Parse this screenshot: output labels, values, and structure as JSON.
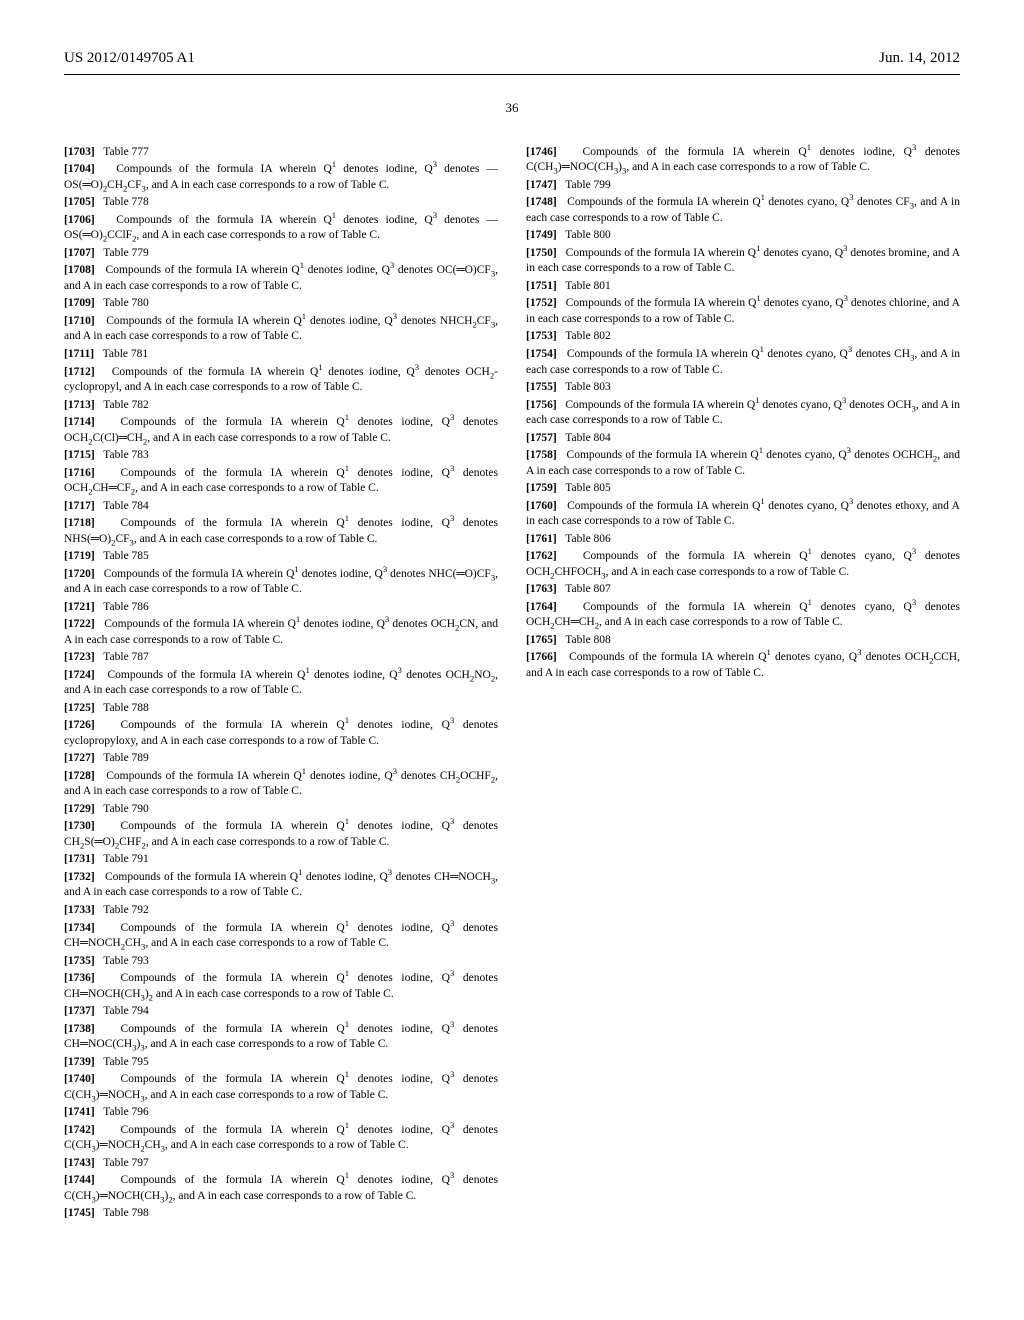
{
  "header": {
    "pub_number": "US 2012/0149705 A1",
    "pub_date": "Jun. 14, 2012",
    "page_number": "36"
  },
  "entries": [
    {
      "num": "[1703]",
      "title": "Table 777"
    },
    {
      "num": "[1704]",
      "text": "Compounds of the formula IA wherein Q¹ denotes iodine, Q³ denotes —OS(═O)₂CH₂CF₃, and A in each case corresponds to a row of Table C."
    },
    {
      "num": "[1705]",
      "title": "Table 778"
    },
    {
      "num": "[1706]",
      "text": "Compounds of the formula IA wherein Q¹ denotes iodine, Q³ denotes —OS(═O)₂CClF₂, and A in each case corresponds to a row of Table C."
    },
    {
      "num": "[1707]",
      "title": "Table 779"
    },
    {
      "num": "[1708]",
      "text": "Compounds of the formula IA wherein Q¹ denotes iodine, Q³ denotes OC(═O)CF₃, and A in each case corresponds to a row of Table C."
    },
    {
      "num": "[1709]",
      "title": "Table 780"
    },
    {
      "num": "[1710]",
      "text": "Compounds of the formula IA wherein Q¹ denotes iodine, Q³ denotes NHCH₂CF₃, and A in each case corresponds to a row of Table C."
    },
    {
      "num": "[1711]",
      "title": "Table 781"
    },
    {
      "num": "[1712]",
      "text": "Compounds of the formula IA wherein Q¹ denotes iodine, Q³ denotes OCH₂-cyclopropyl, and A in each case corresponds to a row of Table C."
    },
    {
      "num": "[1713]",
      "title": "Table 782"
    },
    {
      "num": "[1714]",
      "text": "Compounds of the formula IA wherein Q¹ denotes iodine, Q³ denotes OCH₂C(Cl)═CH₂, and A in each case corresponds to a row of Table C."
    },
    {
      "num": "[1715]",
      "title": "Table 783"
    },
    {
      "num": "[1716]",
      "text": "Compounds of the formula IA wherein Q¹ denotes iodine, Q³ denotes OCH₂CH═CF₂, and A in each case corresponds to a row of Table C."
    },
    {
      "num": "[1717]",
      "title": "Table 784"
    },
    {
      "num": "[1718]",
      "text": "Compounds of the formula IA wherein Q¹ denotes iodine, Q³ denotes NHS(═O)₂CF₃, and A in each case corresponds to a row of Table C."
    },
    {
      "num": "[1719]",
      "title": "Table 785"
    },
    {
      "num": "[1720]",
      "text": "Compounds of the formula IA wherein Q¹ denotes iodine, Q³ denotes NHC(═O)CF₃, and A in each case corresponds to a row of Table C."
    },
    {
      "num": "[1721]",
      "title": "Table 786"
    },
    {
      "num": "[1722]",
      "text": "Compounds of the formula IA wherein Q¹ denotes iodine, Q³ denotes OCH₂CN, and A in each case corresponds to a row of Table C."
    },
    {
      "num": "[1723]",
      "title": "Table 787"
    },
    {
      "num": "[1724]",
      "text": "Compounds of the formula IA wherein Q¹ denotes iodine, Q³ denotes OCH₂NO₂, and A in each case corresponds to a row of Table C."
    },
    {
      "num": "[1725]",
      "title": "Table 788"
    },
    {
      "num": "[1726]",
      "text": "Compounds of the formula IA wherein Q¹ denotes iodine, Q³ denotes cyclopropyloxy, and A in each case corresponds to a row of Table C."
    },
    {
      "num": "[1727]",
      "title": "Table 789"
    },
    {
      "num": "[1728]",
      "text": "Compounds of the formula IA wherein Q¹ denotes iodine, Q³ denotes CH₂OCHF₂, and A in each case corresponds to a row of Table C."
    },
    {
      "num": "[1729]",
      "title": "Table 790"
    },
    {
      "num": "[1730]",
      "text": "Compounds of the formula IA wherein Q¹ denotes iodine, Q³ denotes CH₂S(═O)₂CHF₂, and A in each case corresponds to a row of Table C."
    },
    {
      "num": "[1731]",
      "title": "Table 791"
    },
    {
      "num": "[1732]",
      "text": "Compounds of the formula IA wherein Q¹ denotes iodine, Q³ denotes CH═NOCH₃, and A in each case corresponds to a row of Table C."
    },
    {
      "num": "[1733]",
      "title": "Table 792"
    },
    {
      "num": "[1734]",
      "text": "Compounds of the formula IA wherein Q¹ denotes iodine, Q³ denotes CH═NOCH₂CH₃, and A in each case corresponds to a row of Table C."
    },
    {
      "num": "[1735]",
      "title": "Table 793"
    },
    {
      "num": "[1736]",
      "text": "Compounds of the formula IA wherein Q¹ denotes iodine, Q³ denotes CH═NOCH(CH₃)₂ and A in each case corresponds to a row of Table C."
    },
    {
      "num": "[1737]",
      "title": "Table 794"
    },
    {
      "num": "[1738]",
      "text": "Compounds of the formula IA wherein Q¹ denotes iodine, Q³ denotes CH═NOC(CH₃)₃, and A in each case corresponds to a row of Table C."
    },
    {
      "num": "[1739]",
      "title": "Table 795"
    },
    {
      "num": "[1740]",
      "text": "Compounds of the formula IA wherein Q¹ denotes iodine, Q³ denotes C(CH₃)═NOCH₃, and A in each case corresponds to a row of Table C."
    },
    {
      "num": "[1741]",
      "title": "Table 796"
    },
    {
      "num": "[1742]",
      "text": "Compounds of the formula IA wherein Q¹ denotes iodine, Q³ denotes C(CH₃)═NOCH₂CH₃, and A in each case corresponds to a row of Table C."
    },
    {
      "num": "[1743]",
      "title": "Table 797"
    },
    {
      "num": "[1744]",
      "text": "Compounds of the formula IA wherein Q¹ denotes iodine, Q³ denotes C(CH₃)═NOCH(CH₃)₂, and A in each case corresponds to a row of Table C."
    },
    {
      "num": "[1745]",
      "title": "Table 798"
    },
    {
      "num": "[1746]",
      "text": "Compounds of the formula IA wherein Q¹ denotes iodine, Q³ denotes C(CH₃)═NOC(CH₃)₃, and A in each case corresponds to a row of Table C."
    },
    {
      "num": "[1747]",
      "title": "Table 799"
    },
    {
      "num": "[1748]",
      "text": "Compounds of the formula IA wherein Q¹ denotes cyano, Q³ denotes CF₃, and A in each case corresponds to a row of Table C."
    },
    {
      "num": "[1749]",
      "title": "Table 800"
    },
    {
      "num": "[1750]",
      "text": "Compounds of the formula IA wherein Q¹ denotes cyano, Q³ denotes bromine, and A in each case corresponds to a row of Table C."
    },
    {
      "num": "[1751]",
      "title": "Table 801"
    },
    {
      "num": "[1752]",
      "text": "Compounds of the formula IA wherein Q¹ denotes cyano, Q³ denotes chlorine, and A in each case corresponds to a row of Table C."
    },
    {
      "num": "[1753]",
      "title": "Table 802"
    },
    {
      "num": "[1754]",
      "text": "Compounds of the formula IA wherein Q¹ denotes cyano, Q³ denotes CH₃, and A in each case corresponds to a row of Table C."
    },
    {
      "num": "[1755]",
      "title": "Table 803"
    },
    {
      "num": "[1756]",
      "text": "Compounds of the formula IA wherein Q¹ denotes cyano, Q³ denotes OCH₃, and A in each case corresponds to a row of Table C."
    },
    {
      "num": "[1757]",
      "title": "Table 804"
    },
    {
      "num": "[1758]",
      "text": "Compounds of the formula IA wherein Q¹ denotes cyano, Q³ denotes OCHCH₂, and A in each case corresponds to a row of Table C."
    },
    {
      "num": "[1759]",
      "title": "Table 805"
    },
    {
      "num": "[1760]",
      "text": "Compounds of the formula IA wherein Q¹ denotes cyano, Q³ denotes ethoxy, and A in each case corresponds to a row of Table C."
    },
    {
      "num": "[1761]",
      "title": "Table 806"
    },
    {
      "num": "[1762]",
      "text": "Compounds of the formula IA wherein Q¹ denotes cyano, Q³ denotes OCH₂CHFOCH₃, and A in each case corresponds to a row of Table C."
    },
    {
      "num": "[1763]",
      "title": "Table 807"
    },
    {
      "num": "[1764]",
      "text": "Compounds of the formula IA wherein Q¹ denotes cyano, Q³ denotes OCH₂CH═CH₂, and A in each case corresponds to a row of Table C."
    },
    {
      "num": "[1765]",
      "title": "Table 808"
    },
    {
      "num": "[1766]",
      "text": "Compounds of the formula IA wherein Q¹ denotes cyano, Q³ denotes OCH₂CCH, and A in each case corresponds to a row of Table C."
    }
  ]
}
